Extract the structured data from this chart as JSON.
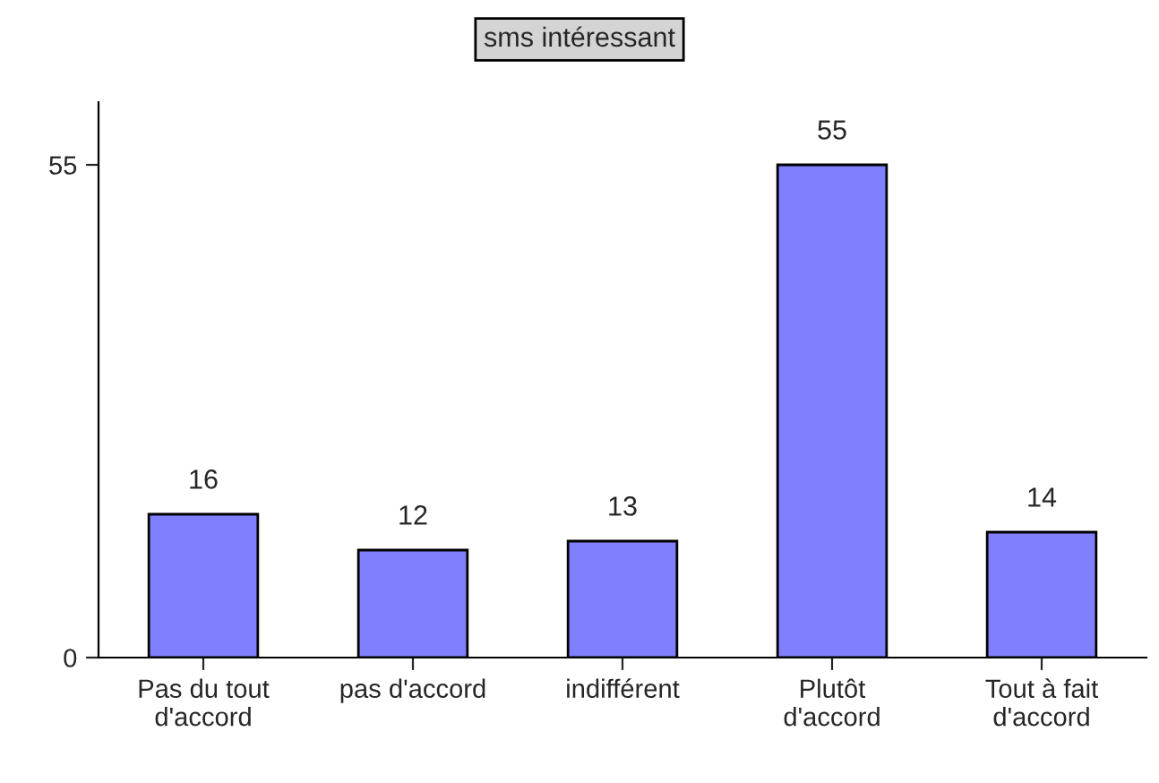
{
  "chart_data": {
    "type": "bar",
    "title": "sms intéressant",
    "categories": [
      "Pas du tout\nd'accord",
      "pas d'accord",
      "indifférent",
      "Plutôt\nd'accord",
      "Tout à fait\nd'accord"
    ],
    "values": [
      16,
      12,
      13,
      55,
      14
    ],
    "color": "#8080ff",
    "ylim": [
      0,
      62
    ],
    "yticks": [
      0,
      55
    ],
    "grid": false,
    "data_labels": true
  }
}
